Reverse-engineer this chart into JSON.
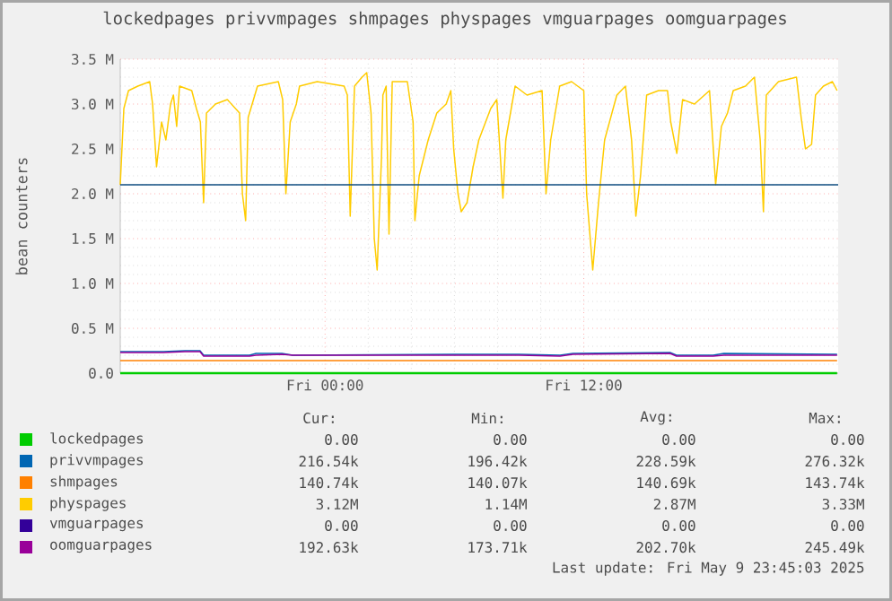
{
  "chart_data": {
    "type": "line",
    "title": "lockedpages privvmpages shmpages physpages vmguarpages oomguarpages",
    "ylabel": "bean counters",
    "xlim": [
      "2025-05-08T14:30",
      "2025-05-09T23:48"
    ],
    "xticks": [
      {
        "value": "2025-05-09T00:00",
        "label": "Fri 00:00"
      },
      {
        "value": "2025-05-09T12:00",
        "label": "Fri 12:00"
      }
    ],
    "ylim": [
      0,
      3.5
    ],
    "yticks": [
      {
        "value": 0,
        "label": "0.0"
      },
      {
        "value": 0.5,
        "label": "0.5 M"
      },
      {
        "value": 1,
        "label": "1.0 M"
      },
      {
        "value": 1.5,
        "label": "1.5 M"
      },
      {
        "value": 2,
        "label": "2.0 M"
      },
      {
        "value": 2.5,
        "label": "2.5 M"
      },
      {
        "value": 3,
        "label": "3.0 M"
      },
      {
        "value": 3.5,
        "label": "3.5 M"
      }
    ],
    "grid": true,
    "legend": "bottom",
    "ref_lines": [
      {
        "axis": "y",
        "value": 2.1,
        "color": "#0f4c81"
      }
    ],
    "series": [
      {
        "name": "lockedpages",
        "color": "#00cc00",
        "x": [
          "2025-05-08T14:30",
          "2025-05-09T23:45"
        ],
        "values": [
          0,
          0
        ]
      },
      {
        "name": "privvmpages",
        "color": "#0066b3",
        "x": [
          "2025-05-08T14:30",
          "2025-05-08T16:30",
          "2025-05-08T17:30",
          "2025-05-08T18:12",
          "2025-05-08T18:22",
          "2025-05-08T20:30",
          "2025-05-08T20:48",
          "2025-05-08T22:00",
          "2025-05-08T22:30",
          "2025-05-09T06:00",
          "2025-05-09T09:00",
          "2025-05-09T10:54",
          "2025-05-09T11:30",
          "2025-05-09T16:00",
          "2025-05-09T16:18",
          "2025-05-09T18:00",
          "2025-05-09T18:30",
          "2025-05-09T23:45"
        ],
        "values": [
          0.24,
          0.24,
          0.25,
          0.25,
          0.2,
          0.2,
          0.22,
          0.22,
          0.2,
          0.21,
          0.21,
          0.2,
          0.22,
          0.23,
          0.2,
          0.2,
          0.22,
          0.21
        ]
      },
      {
        "name": "shmpages",
        "color": "#ff8000",
        "x": [
          "2025-05-08T14:30",
          "2025-05-09T23:45"
        ],
        "values": [
          0.14,
          0.14
        ]
      },
      {
        "name": "physpages",
        "color": "#ffcc00",
        "x": [
          "2025-05-08T14:30",
          "2025-05-08T14:40",
          "2025-05-08T14:53",
          "2025-05-08T15:19",
          "2025-05-08T15:52",
          "2025-05-08T16:00",
          "2025-05-08T16:11",
          "2025-05-08T16:25",
          "2025-05-08T16:37",
          "2025-05-08T16:50",
          "2025-05-08T16:58",
          "2025-05-08T17:07",
          "2025-05-08T17:15",
          "2025-05-08T17:49",
          "2025-05-08T18:02",
          "2025-05-08T18:13",
          "2025-05-08T18:22",
          "2025-05-08T18:30",
          "2025-05-08T18:55",
          "2025-05-08T19:28",
          "2025-05-08T20:02",
          "2025-05-08T20:10",
          "2025-05-08T20:19",
          "2025-05-08T20:26",
          "2025-05-08T20:52",
          "2025-05-08T21:50",
          "2025-05-08T22:02",
          "2025-05-08T22:11",
          "2025-05-08T22:23",
          "2025-05-08T22:40",
          "2025-05-08T22:49",
          "2025-05-08T23:38",
          "2025-05-09T00:53",
          "2025-05-09T01:02",
          "2025-05-09T01:10",
          "2025-05-09T01:22",
          "2025-05-09T01:43",
          "2025-05-09T01:56",
          "2025-05-09T02:08",
          "2025-05-09T02:17",
          "2025-05-09T02:25",
          "2025-05-09T02:37",
          "2025-05-09T02:41",
          "2025-05-09T02:50",
          "2025-05-09T02:58",
          "2025-05-09T03:07",
          "2025-05-09T03:49",
          "2025-05-09T04:05",
          "2025-05-09T04:10",
          "2025-05-09T04:22",
          "2025-05-09T04:47",
          "2025-05-09T05:11",
          "2025-05-09T05:37",
          "2025-05-09T05:50",
          "2025-05-09T05:58",
          "2025-05-09T06:10",
          "2025-05-09T06:19",
          "2025-05-09T06:35",
          "2025-05-09T06:52",
          "2025-05-09T07:08",
          "2025-05-09T07:41",
          "2025-05-09T07:58",
          "2025-05-09T08:15",
          "2025-05-09T08:23",
          "2025-05-09T08:49",
          "2025-05-09T09:22",
          "2025-05-09T10:04",
          "2025-05-09T10:15",
          "2025-05-09T10:28",
          "2025-05-09T10:53",
          "2025-05-09T11:26",
          "2025-05-09T12:00",
          "2025-05-09T12:08",
          "2025-05-09T12:25",
          "2025-05-09T12:41",
          "2025-05-09T12:58",
          "2025-05-09T13:32",
          "2025-05-09T13:56",
          "2025-05-09T14:13",
          "2025-05-09T14:25",
          "2025-05-09T14:38",
          "2025-05-09T14:55",
          "2025-05-09T15:28",
          "2025-05-09T15:53",
          "2025-05-09T16:02",
          "2025-05-09T16:19",
          "2025-05-09T16:35",
          "2025-05-09T17:08",
          "2025-05-09T17:50",
          "2025-05-09T18:07",
          "2025-05-09T18:23",
          "2025-05-09T18:40",
          "2025-05-09T18:56",
          "2025-05-09T19:30",
          "2025-05-09T19:55",
          "2025-05-09T20:11",
          "2025-05-09T20:20",
          "2025-05-09T20:28",
          "2025-05-09T21:02",
          "2025-05-09T21:52",
          "2025-05-09T22:05",
          "2025-05-09T22:17",
          "2025-05-09T22:34",
          "2025-05-09T22:45",
          "2025-05-09T23:07",
          "2025-05-09T23:32",
          "2025-05-09T23:45"
        ],
        "values": [
          2.1,
          2.95,
          3.15,
          3.2,
          3.25,
          3.0,
          2.3,
          2.8,
          2.6,
          3.0,
          3.1,
          2.75,
          3.2,
          3.15,
          2.95,
          2.8,
          1.9,
          2.9,
          3.0,
          3.05,
          2.9,
          2.0,
          1.7,
          2.85,
          3.2,
          3.25,
          3.05,
          2.0,
          2.8,
          3.0,
          3.2,
          3.25,
          3.2,
          3.1,
          1.75,
          3.2,
          3.3,
          3.35,
          2.9,
          1.5,
          1.15,
          2.4,
          3.1,
          3.2,
          1.55,
          3.25,
          3.25,
          2.8,
          1.7,
          2.2,
          2.6,
          2.9,
          3.0,
          3.15,
          2.5,
          2.0,
          1.8,
          1.9,
          2.3,
          2.6,
          2.95,
          3.05,
          1.95,
          2.6,
          3.2,
          3.1,
          3.15,
          2.0,
          2.6,
          3.2,
          3.25,
          3.15,
          2.0,
          1.15,
          1.9,
          2.6,
          3.1,
          3.2,
          2.6,
          1.75,
          2.2,
          3.1,
          3.15,
          3.15,
          2.8,
          2.45,
          3.05,
          3.0,
          3.15,
          2.1,
          2.75,
          2.9,
          3.15,
          3.2,
          3.3,
          2.6,
          1.8,
          3.1,
          3.25,
          3.3,
          2.85,
          2.5,
          2.55,
          3.1,
          3.2,
          3.25,
          3.15
        ]
      },
      {
        "name": "vmguarpages",
        "color": "#330099"
      },
      {
        "name": "oomguarpages",
        "color": "#990099",
        "x": [
          "2025-05-08T14:30",
          "2025-05-08T16:30",
          "2025-05-08T17:30",
          "2025-05-08T18:12",
          "2025-05-08T18:22",
          "2025-05-08T20:30",
          "2025-05-08T20:48",
          "2025-05-08T22:00",
          "2025-05-08T22:30",
          "2025-05-09T06:00",
          "2025-05-09T09:00",
          "2025-05-09T10:54",
          "2025-05-09T11:30",
          "2025-05-09T16:00",
          "2025-05-09T16:18",
          "2025-05-09T18:00",
          "2025-05-09T18:30",
          "2025-05-09T23:45"
        ],
        "values": [
          0.23,
          0.23,
          0.24,
          0.24,
          0.19,
          0.19,
          0.2,
          0.21,
          0.2,
          0.2,
          0.2,
          0.19,
          0.21,
          0.22,
          0.19,
          0.19,
          0.2,
          0.2
        ]
      }
    ],
    "annotations": [
      "Cur:",
      "Min:",
      "Avg:",
      "Max:",
      "0.00",
      "0.00",
      "0.00",
      "0.00",
      "216.54k",
      "196.42k",
      "228.59k",
      "276.32k",
      "140.74k",
      "140.07k",
      "140.69k",
      "143.74k",
      "3.12M",
      "1.14M",
      "2.87M",
      "3.33M",
      "0.00",
      "0.00",
      "0.00",
      "0.00",
      "192.63k",
      "173.71k",
      "202.70k",
      "245.49k",
      "Last update: Fri May  9 23:45:03 2025"
    ]
  }
}
